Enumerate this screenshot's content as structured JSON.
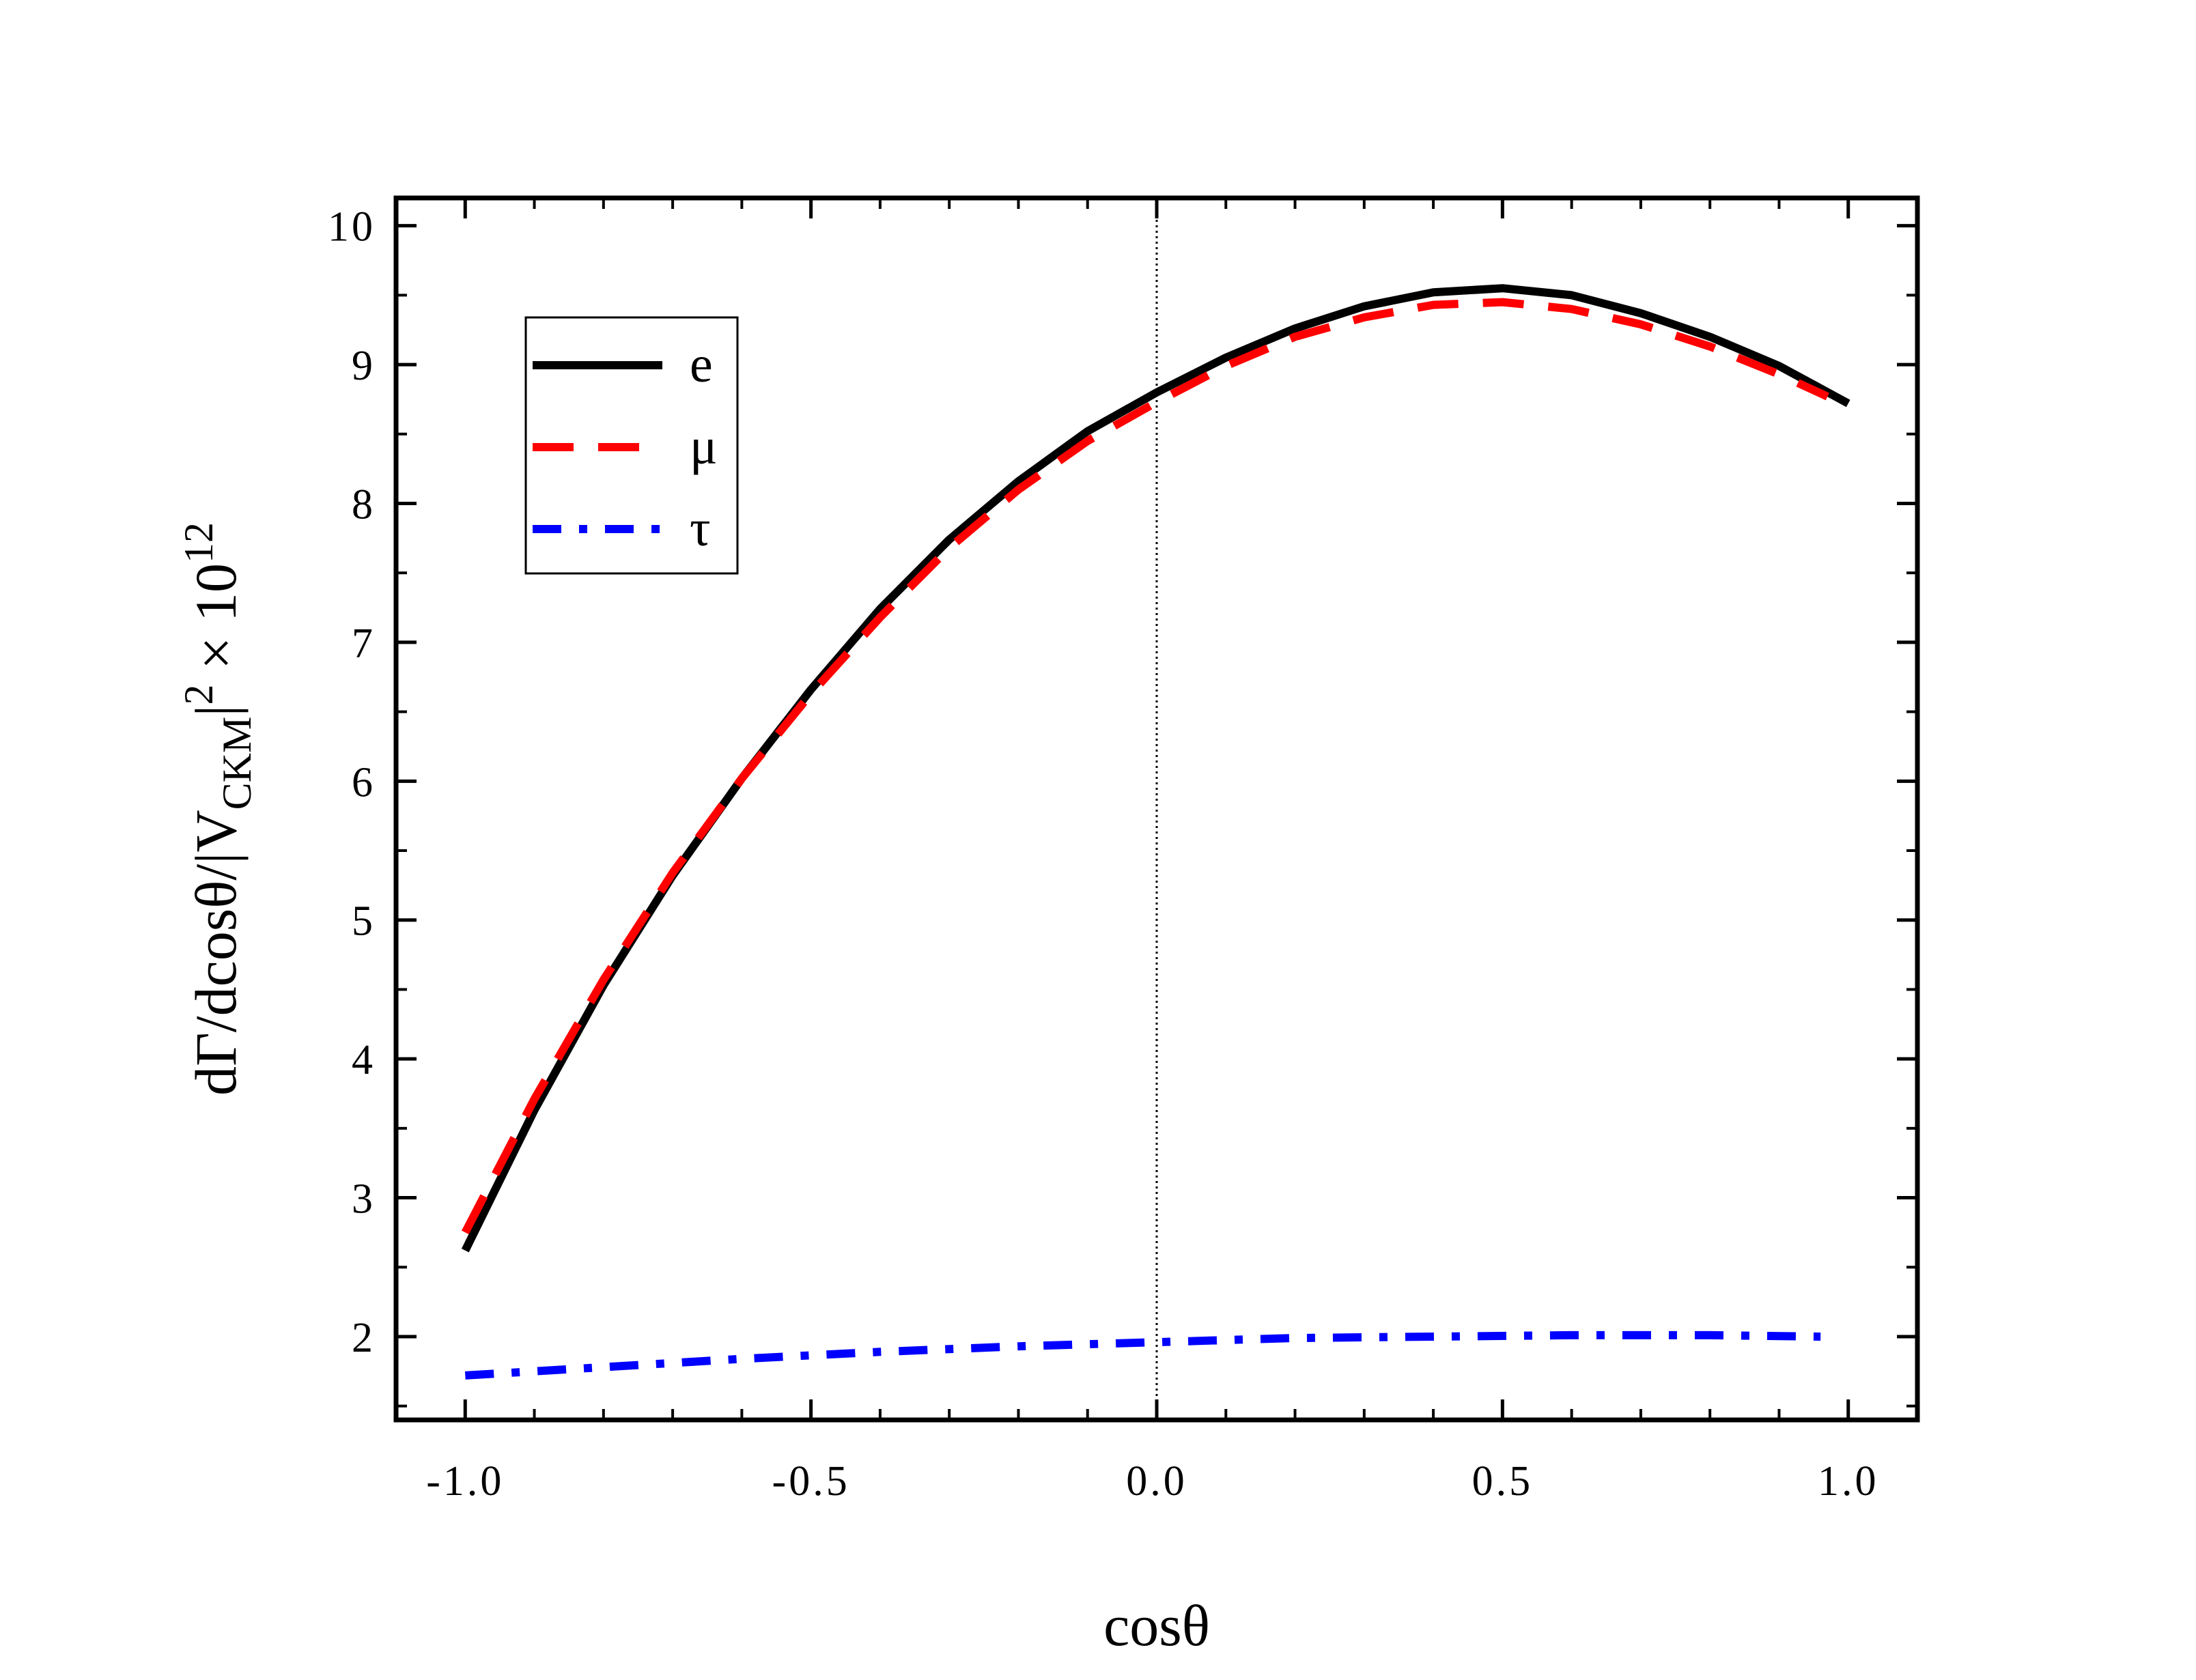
{
  "chart_data": {
    "type": "line",
    "title": "",
    "xlabel": "cosθ",
    "ylabel": {
      "main": "dΓ/dcosθ/|V",
      "subscript": "CKM",
      "bar": "|",
      "superscript": "2",
      "times": " × 10",
      "exponent": "12"
    },
    "xlim": [
      -1.1,
      1.1
    ],
    "ylim": [
      1.4,
      10.2
    ],
    "xticks": [
      -1.0,
      -0.5,
      0.0,
      0.5,
      1.0
    ],
    "xtick_labels": [
      "-1.0",
      "-0.5",
      "0.0",
      "0.5",
      "1.0"
    ],
    "yticks": [
      2,
      3,
      4,
      5,
      6,
      7,
      8,
      9,
      10
    ],
    "ytick_labels": [
      "2",
      "3",
      "4",
      "5",
      "6",
      "7",
      "8",
      "9",
      "10"
    ],
    "grid": false,
    "reference_line": {
      "x": 0.0,
      "style": "dotted"
    },
    "legend_position": "upper-left",
    "series": [
      {
        "name": "e",
        "color": "#000000",
        "style": "solid",
        "x": [
          -1.0,
          -0.9,
          -0.8,
          -0.7,
          -0.6,
          -0.5,
          -0.4,
          -0.3,
          -0.2,
          -0.1,
          0.0,
          0.1,
          0.2,
          0.3,
          0.4,
          0.5,
          0.6,
          0.7,
          0.8,
          0.9,
          1.0
        ],
        "y": [
          2.62,
          3.63,
          4.53,
          5.32,
          6.02,
          6.66,
          7.24,
          7.74,
          8.16,
          8.52,
          8.8,
          9.05,
          9.26,
          9.42,
          9.52,
          9.55,
          9.5,
          9.37,
          9.2,
          8.99,
          8.72
        ]
      },
      {
        "name": "μ",
        "color": "#ff0000",
        "style": "dashed",
        "x": [
          -1.0,
          -0.9,
          -0.8,
          -0.7,
          -0.6,
          -0.5,
          -0.4,
          -0.3,
          -0.2,
          -0.1,
          0.0,
          0.1,
          0.2,
          0.3,
          0.4,
          0.5,
          0.6,
          0.7,
          0.8,
          0.9,
          0.97
        ],
        "y": [
          2.75,
          3.71,
          4.57,
          5.34,
          6.02,
          6.63,
          7.18,
          7.68,
          8.1,
          8.45,
          8.73,
          8.99,
          9.2,
          9.34,
          9.43,
          9.45,
          9.4,
          9.29,
          9.13,
          8.93,
          8.77
        ]
      },
      {
        "name": "τ",
        "color": "#0000ff",
        "style": "dashdot",
        "x": [
          -1.0,
          -0.8,
          -0.6,
          -0.4,
          -0.2,
          0.0,
          0.2,
          0.4,
          0.6,
          0.8,
          0.96
        ],
        "y": [
          1.72,
          1.78,
          1.84,
          1.89,
          1.93,
          1.96,
          1.99,
          2.0,
          2.01,
          2.01,
          2.0
        ]
      }
    ]
  }
}
